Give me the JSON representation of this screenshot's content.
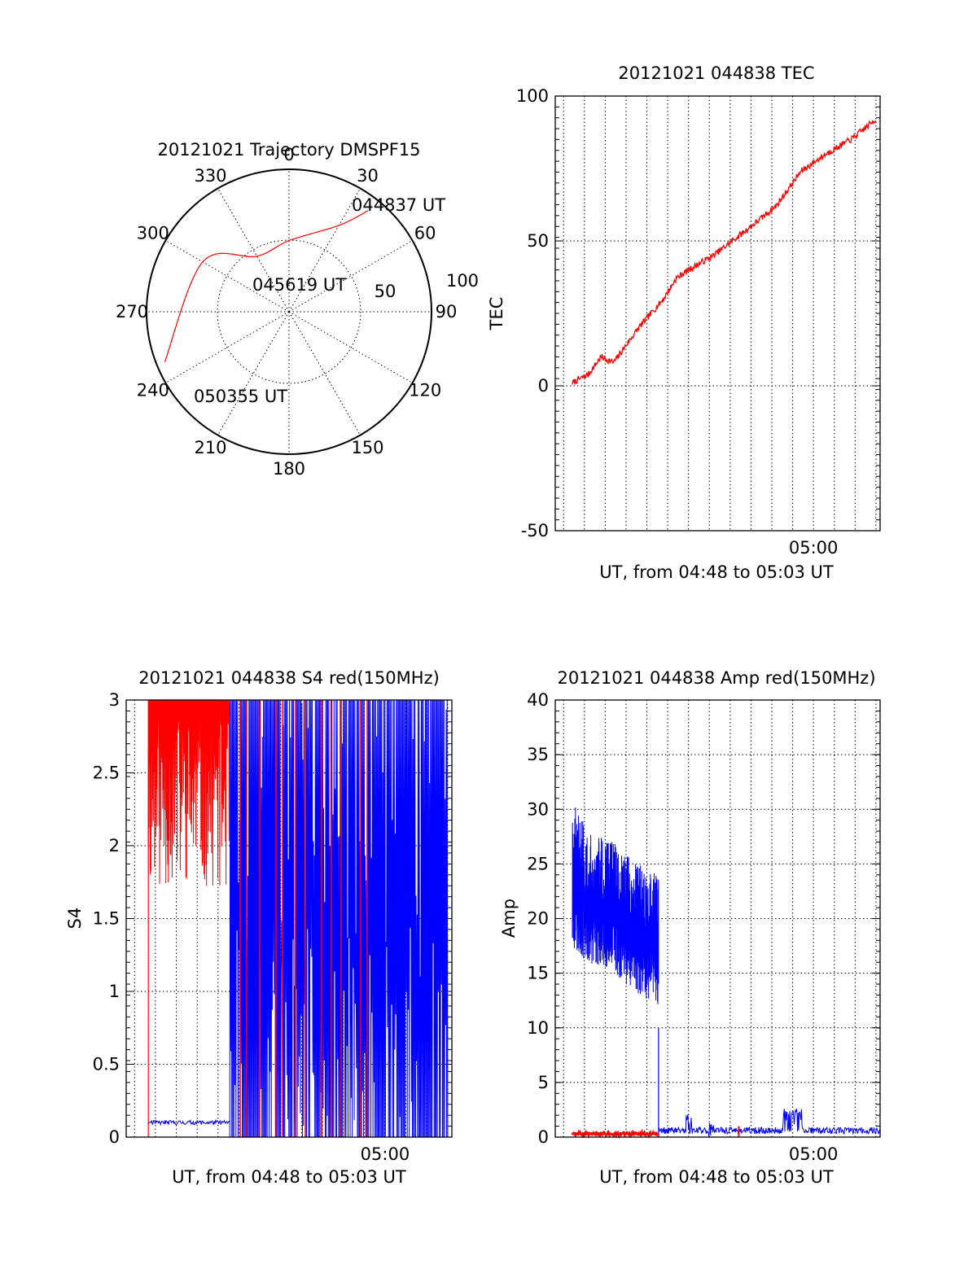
{
  "chart_data": [
    {
      "type": "polar",
      "title": "20121021 Trajectory DMSPF15",
      "azimuth_labels": [
        "0",
        "30",
        "60",
        "90",
        "120",
        "150",
        "180",
        "210",
        "240",
        "270",
        "300",
        "330"
      ],
      "radial_labels": [
        "50",
        "100"
      ],
      "series": [
        {
          "color": "#ff0000",
          "points": [
            [
              38,
              90
            ],
            [
              30,
              70
            ],
            [
              0,
              50
            ],
            [
              -30,
              45
            ],
            [
              -60,
              70
            ],
            [
              -112,
              94
            ]
          ]
        }
      ],
      "annotations": [
        {
          "text": "044837 UT"
        },
        {
          "text": "045619 UT"
        },
        {
          "text": "050355 UT"
        }
      ]
    },
    {
      "type": "line",
      "title": "20121021 044838 TEC",
      "ylabel": "TEC",
      "xlabel": "UT, from 04:48 to 05:03 UT",
      "xlim": [
        4.8,
        5.05
      ],
      "ylim": [
        -50,
        100
      ],
      "yticks": [
        -50,
        0,
        50,
        100
      ],
      "xticks": [
        {
          "value": 5.0,
          "label": "05:00"
        }
      ],
      "series": [
        {
          "color": "#ff0000",
          "x": [
            4.807,
            4.82,
            4.83,
            4.84,
            4.86,
            4.88,
            4.89,
            4.9,
            4.92,
            4.95,
            4.97,
            4.99,
            5.01,
            5.03,
            5.05
          ],
          "y": [
            1,
            4,
            10,
            8,
            20,
            30,
            37,
            40,
            45,
            55,
            62,
            74,
            80,
            85,
            92
          ]
        }
      ]
    },
    {
      "type": "line",
      "title": "20121021 044838 S4 red(150MHz)",
      "ylabel": "S4",
      "xlabel": "UT, from 04:48 to 05:03 UT",
      "xlim": [
        4.8,
        5.05
      ],
      "ylim": [
        0,
        3
      ],
      "yticks": [
        0,
        0.5,
        1,
        1.5,
        2,
        2.5,
        3
      ],
      "ytick_labels": [
        "0",
        "0.5",
        "1",
        "1.5",
        "2",
        "2.5",
        "3"
      ],
      "xticks": [
        {
          "value": 5.0,
          "label": "05:00"
        }
      ],
      "series": [
        {
          "color": "#0000ff",
          "description": "S4 (blue)",
          "baseline": [
            [
              4.811,
              0.1
            ],
            [
              4.876,
              0.12
            ]
          ],
          "fill_region": [
            4.876,
            5.05
          ]
        },
        {
          "color": "#ff0000",
          "description": "S4 (red)",
          "fill_region": [
            4.811,
            4.876
          ]
        }
      ]
    },
    {
      "type": "line",
      "title": "20121021 044838 Amp red(150MHz)",
      "ylabel": "Amp",
      "xlabel": "UT, from 04:48 to 05:03 UT",
      "xlim": [
        4.8,
        5.05
      ],
      "ylim": [
        0,
        40
      ],
      "yticks": [
        0,
        5,
        10,
        15,
        20,
        25,
        30,
        35,
        40
      ],
      "xticks": [
        {
          "value": 5.0,
          "label": "05:00"
        }
      ],
      "series": [
        {
          "color": "#0000ff",
          "description": "Amp (blue)",
          "envelope_x": [
            4.807,
            4.82,
            4.84,
            4.86,
            4.876
          ],
          "envelope_low": [
            17,
            16,
            15,
            13,
            12
          ],
          "envelope_high": [
            31,
            28,
            27,
            25,
            24
          ]
        },
        {
          "color": "#ff0000",
          "description": "Amp (red)",
          "level": 0.3,
          "range": [
            4.807,
            4.876
          ]
        }
      ]
    }
  ]
}
